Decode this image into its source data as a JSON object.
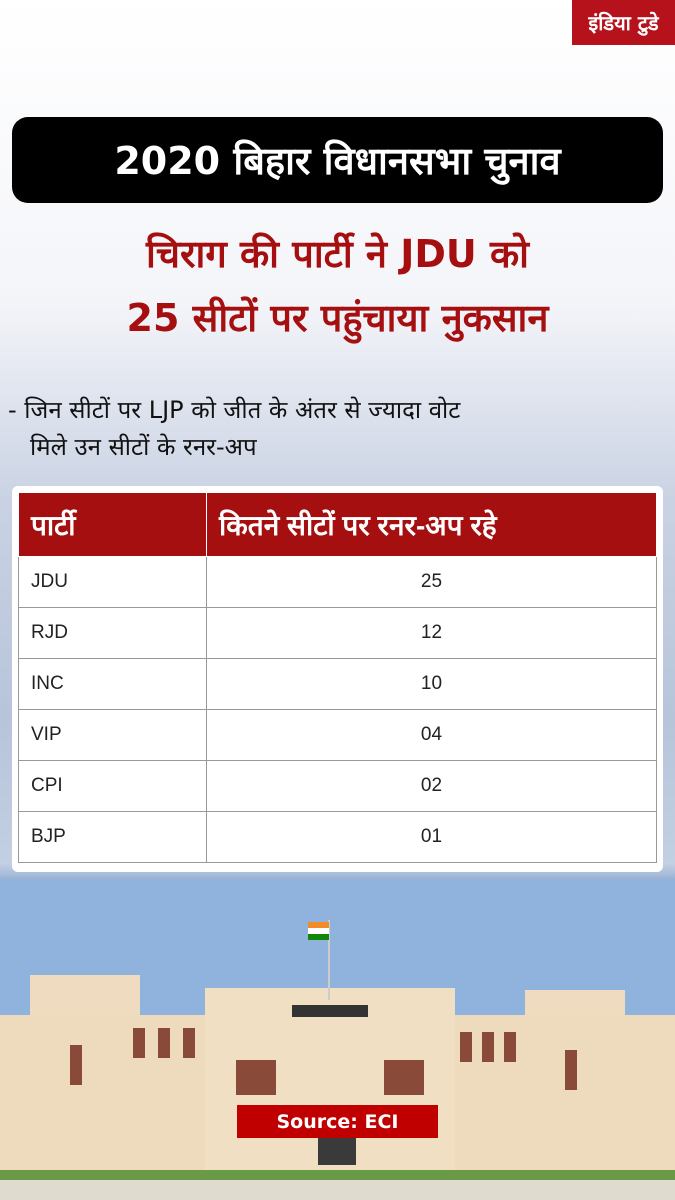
{
  "logo": "इंडिया टुडे",
  "title": "2020 बिहार विधानसभा चुनाव",
  "headline": {
    "line1": "चिराग की पार्टी ने JDU को",
    "line2": "25 सीटों पर पहुंचाया नुकसान"
  },
  "note": {
    "line1": "- जिन सीटों पर LJP को जीत के अंतर से ज्यादा वोट",
    "line2": "मिले उन सीटों के रनर-अप"
  },
  "chart_data": {
    "type": "table",
    "columns": [
      "पार्टी",
      "कितने सीटों पर रनर-अप रहे"
    ],
    "rows": [
      [
        "JDU",
        "25"
      ],
      [
        "RJD",
        "12"
      ],
      [
        "INC",
        "10"
      ],
      [
        "VIP",
        "04"
      ],
      [
        "CPI",
        "02"
      ],
      [
        "BJP",
        "01"
      ]
    ]
  },
  "source": "Source: ECI",
  "colors": {
    "accent": "#a50f10",
    "title_bg": "#000000",
    "source_bg": "#c00000"
  }
}
